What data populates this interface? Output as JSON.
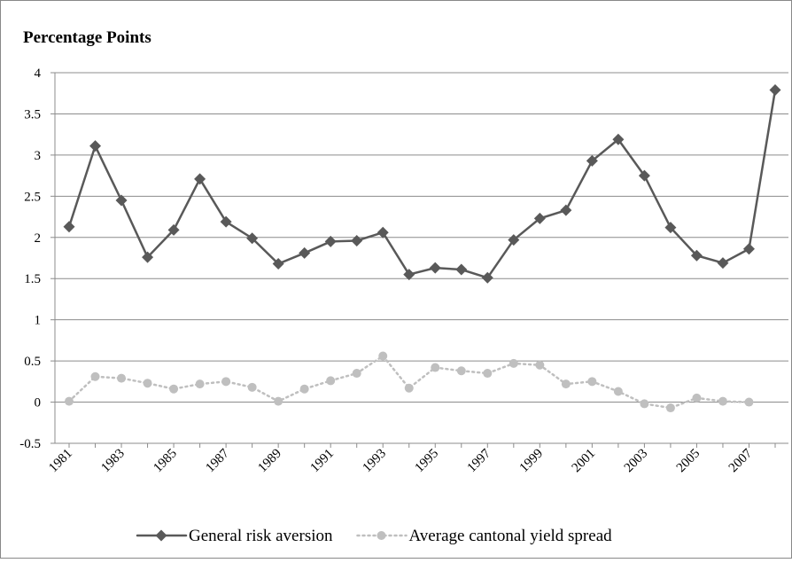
{
  "chart_data": {
    "type": "line",
    "title": "Percentage Points",
    "categories": [
      "1981",
      null,
      "1983",
      null,
      "1985",
      null,
      "1987",
      null,
      "1989",
      null,
      "1991",
      null,
      "1993",
      null,
      "1995",
      null,
      "1997",
      null,
      "1999",
      null,
      "2001",
      null,
      "2003",
      null,
      "2005",
      null,
      "2007",
      null
    ],
    "series": [
      {
        "name": "General risk aversion",
        "color": "#595959",
        "marker": "diamond",
        "line_style": "solid",
        "values": [
          2.13,
          3.11,
          2.45,
          1.76,
          2.09,
          2.71,
          2.19,
          1.99,
          1.68,
          1.81,
          1.95,
          1.96,
          2.06,
          1.55,
          1.63,
          1.61,
          1.51,
          1.97,
          2.23,
          2.33,
          2.93,
          3.19,
          2.75,
          2.12,
          1.78,
          1.69,
          1.86,
          3.79
        ]
      },
      {
        "name": "Average cantonal yield spread",
        "color": "#bfbfbf",
        "marker": "circle",
        "line_style": "dotted",
        "values": [
          0.01,
          0.31,
          0.29,
          0.23,
          0.16,
          0.22,
          0.25,
          0.18,
          0.01,
          0.16,
          0.26,
          0.35,
          0.56,
          0.17,
          0.42,
          0.38,
          0.35,
          0.47,
          0.45,
          0.22,
          0.25,
          0.13,
          -0.02,
          -0.07,
          0.05,
          0.01,
          0.0,
          null
        ]
      }
    ],
    "ylim": [
      -0.5,
      4
    ],
    "yticks": [
      -0.5,
      0,
      0.5,
      1,
      1.5,
      2,
      2.5,
      3,
      3.5,
      4
    ],
    "grid": true,
    "legend": "bottom"
  }
}
